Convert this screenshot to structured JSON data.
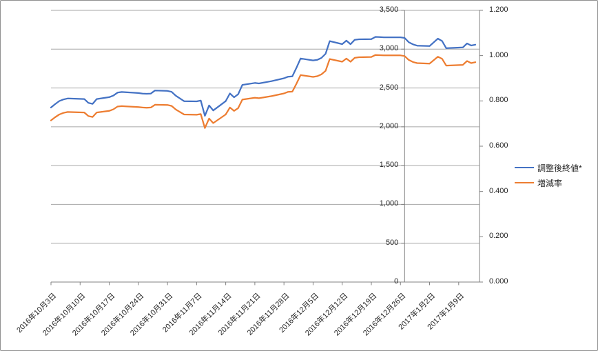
{
  "chart_data": {
    "type": "line",
    "title": "",
    "grid": "horizontal-major",
    "legend_position": "middle-right",
    "x_axis": {
      "start_date": "2016-10-03",
      "last_point_date": "2017-01-13",
      "span_days": 103,
      "tick_interval_days": 7,
      "axis_cross_date": "2016-12-27",
      "tick_labels": [
        "2016年10月3日",
        "2016年10月10日",
        "2016年10月17日",
        "2016年10月24日",
        "2016年10月31日",
        "2016年11月7日",
        "2016年11月14日",
        "2016年11月21日",
        "2016年11月28日",
        "2016年12月5日",
        "2016年12月12日",
        "2016年12月19日",
        "2016年12月26日",
        "2017年1月2日",
        "2017年1月9日"
      ]
    },
    "left_axis": {
      "min": 0,
      "max": 3500,
      "step": 500,
      "labels": [
        "0",
        "500",
        "1,000",
        "1,500",
        "2,000",
        "2,500",
        "3,000",
        "3,500"
      ]
    },
    "right_axis": {
      "min": 0,
      "max": 1.2,
      "step": 0.2,
      "labels": [
        "0.000",
        "0.200",
        "0.400",
        "0.600",
        "0.800",
        "1.000",
        "1.200"
      ]
    },
    "series": [
      {
        "name": "調整後終値*",
        "color": "#4472C4",
        "axis": "left"
      },
      {
        "name": "増減率",
        "color": "#ED7D31",
        "axis": "right"
      }
    ],
    "points": [
      [
        "2016-10-03",
        2248,
        0.714
      ],
      [
        "2016-10-04",
        2292,
        0.728
      ],
      [
        "2016-10-05",
        2332,
        0.74
      ],
      [
        "2016-10-06",
        2352,
        0.747
      ],
      [
        "2016-10-07",
        2365,
        0.751
      ],
      [
        "2016-10-11",
        2358,
        0.749
      ],
      [
        "2016-10-12",
        2308,
        0.733
      ],
      [
        "2016-10-13",
        2295,
        0.729
      ],
      [
        "2016-10-14",
        2358,
        0.749
      ],
      [
        "2016-10-17",
        2382,
        0.756
      ],
      [
        "2016-10-18",
        2402,
        0.763
      ],
      [
        "2016-10-19",
        2440,
        0.775
      ],
      [
        "2016-10-20",
        2448,
        0.777
      ],
      [
        "2016-10-21",
        2445,
        0.776
      ],
      [
        "2016-10-24",
        2435,
        0.773
      ],
      [
        "2016-10-25",
        2428,
        0.771
      ],
      [
        "2016-10-26",
        2425,
        0.77
      ],
      [
        "2016-10-27",
        2428,
        0.771
      ],
      [
        "2016-10-28",
        2468,
        0.783
      ],
      [
        "2016-10-31",
        2462,
        0.782
      ],
      [
        "2016-11-01",
        2450,
        0.778
      ],
      [
        "2016-11-02",
        2400,
        0.762
      ],
      [
        "2016-11-04",
        2330,
        0.74
      ],
      [
        "2016-11-07",
        2327,
        0.739
      ],
      [
        "2016-11-08",
        2338,
        0.742
      ],
      [
        "2016-11-09",
        2141,
        0.68
      ],
      [
        "2016-11-10",
        2275,
        0.722
      ],
      [
        "2016-11-11",
        2210,
        0.702
      ],
      [
        "2016-11-14",
        2330,
        0.74
      ],
      [
        "2016-11-15",
        2430,
        0.771
      ],
      [
        "2016-11-16",
        2380,
        0.756
      ],
      [
        "2016-11-17",
        2420,
        0.768
      ],
      [
        "2016-11-18",
        2540,
        0.806
      ],
      [
        "2016-11-21",
        2565,
        0.814
      ],
      [
        "2016-11-22",
        2558,
        0.812
      ],
      [
        "2016-11-24",
        2578,
        0.818
      ],
      [
        "2016-11-25",
        2588,
        0.821
      ],
      [
        "2016-11-28",
        2625,
        0.833
      ],
      [
        "2016-11-29",
        2645,
        0.84
      ],
      [
        "2016-11-30",
        2650,
        0.841
      ],
      [
        "2016-12-01",
        2760,
        0.876
      ],
      [
        "2016-12-02",
        2880,
        0.914
      ],
      [
        "2016-12-05",
        2855,
        0.906
      ],
      [
        "2016-12-06",
        2862,
        0.909
      ],
      [
        "2016-12-07",
        2887,
        0.917
      ],
      [
        "2016-12-08",
        2940,
        0.933
      ],
      [
        "2016-12-09",
        3104,
        0.985
      ],
      [
        "2016-12-12",
        3065,
        0.973
      ],
      [
        "2016-12-13",
        3110,
        0.987
      ],
      [
        "2016-12-14",
        3064,
        0.973
      ],
      [
        "2016-12-15",
        3120,
        0.99
      ],
      [
        "2016-12-16",
        3127,
        0.993
      ],
      [
        "2016-12-19",
        3130,
        0.994
      ],
      [
        "2016-12-20",
        3158,
        1.003
      ],
      [
        "2016-12-21",
        3156,
        1.002
      ],
      [
        "2016-12-22",
        3153,
        1.001
      ],
      [
        "2016-12-26",
        3153,
        1.001
      ],
      [
        "2016-12-27",
        3145,
        0.998
      ],
      [
        "2016-12-28",
        3090,
        0.981
      ],
      [
        "2016-12-29",
        3062,
        0.972
      ],
      [
        "2016-12-30",
        3045,
        0.967
      ],
      [
        "2017-01-02",
        3040,
        0.965
      ],
      [
        "2017-01-04",
        3136,
        0.995
      ],
      [
        "2017-01-05",
        3105,
        0.986
      ],
      [
        "2017-01-06",
        3012,
        0.956
      ],
      [
        "2017-01-10",
        3022,
        0.959
      ],
      [
        "2017-01-11",
        3074,
        0.976
      ],
      [
        "2017-01-12",
        3047,
        0.967
      ],
      [
        "2017-01-13",
        3058,
        0.971
      ]
    ]
  },
  "colors": {
    "series_blue": "#4472C4",
    "series_orange": "#ED7D31",
    "gridline": "#A6A6A6",
    "axis_line": "#808080",
    "label_text": "#262626",
    "border": "#8F8F8F",
    "background": "#FFFFFF"
  }
}
